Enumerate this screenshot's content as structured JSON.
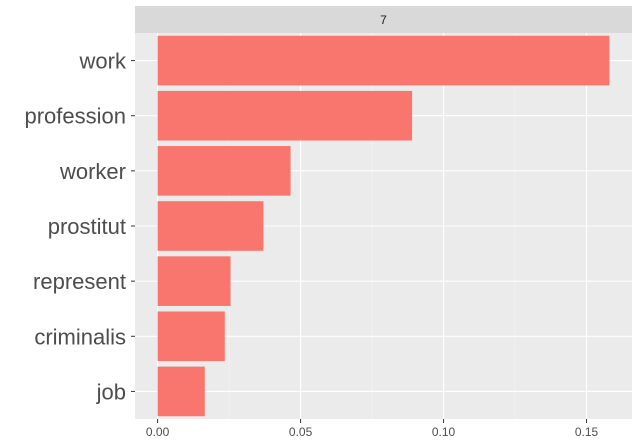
{
  "chart_data": {
    "type": "bar",
    "orientation": "horizontal",
    "facet_label": "7",
    "categories": [
      "work",
      "profession",
      "worker",
      "prostitut",
      "represent",
      "criminalis",
      "job"
    ],
    "values": [
      0.158,
      0.089,
      0.0465,
      0.037,
      0.0255,
      0.0235,
      0.0165
    ],
    "x_ticks": [
      0,
      0.05,
      0.1,
      0.15
    ],
    "x_tick_labels": [
      "0.00",
      "0.05",
      "0.10",
      "0.15"
    ],
    "xlim": [
      -0.0079,
      0.1659
    ],
    "xlabel": "",
    "ylabel": "",
    "title": "",
    "grid": true,
    "colors": {
      "bar": "#F8766D",
      "panel": "#EBEBEB",
      "strip": "#D9D9D9",
      "grid_major": "#FFFFFF",
      "grid_minor": "#F5F5F5",
      "text": "#4D4D4D"
    }
  }
}
